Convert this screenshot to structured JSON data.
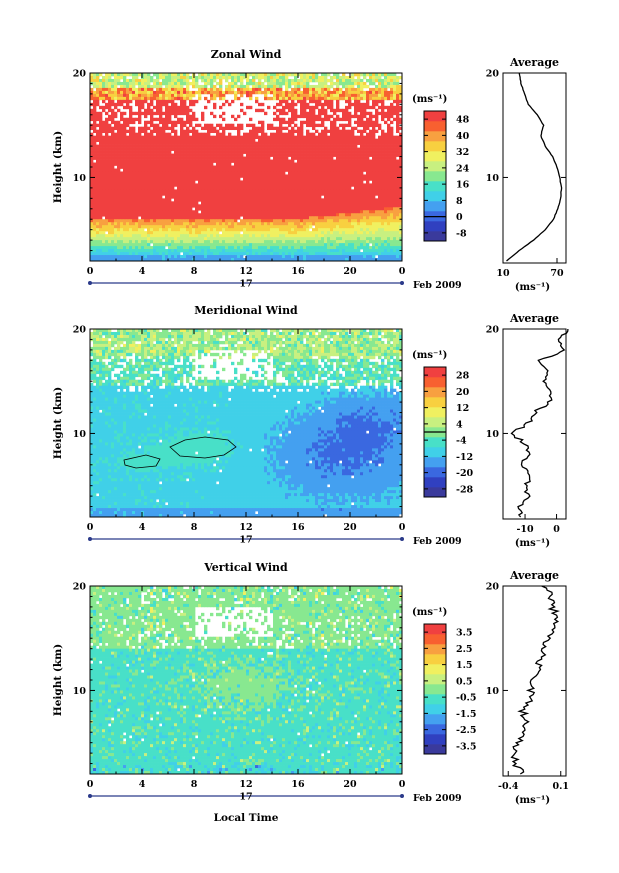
{
  "colors": {
    "scale": [
      "#3a3a9c",
      "#3040c0",
      "#3a68e0",
      "#44a0f0",
      "#40d0e8",
      "#48e0c8",
      "#88e890",
      "#c8f080",
      "#f0f060",
      "#f8d040",
      "#f8a040",
      "#f86030",
      "#f04040"
    ]
  },
  "chart_data": [
    {
      "type": "heatmap",
      "title": "Zonal Wind",
      "ylabel": "Height (km)",
      "y_ticks": [
        "10",
        "20"
      ],
      "ylim": [
        2,
        20
      ],
      "x_ticks": [
        "0",
        "4",
        "8",
        "12",
        "16",
        "20",
        "0"
      ],
      "xlim": [
        0,
        24
      ],
      "day_label": "17",
      "month_label": "Feb 2009",
      "colorbar_unit": "(ms⁻¹)",
      "colorbar_ticks": [
        "48",
        "40",
        "32",
        "24",
        "16",
        "8",
        "0",
        "-8"
      ],
      "colorbar_range": [
        -12,
        52
      ],
      "field": "zonal",
      "avg": {
        "title": "Average",
        "xlabel": "(ms⁻¹)",
        "x_ticks": [
          "10",
          "70"
        ],
        "xlim": [
          10,
          80
        ],
        "y_ticks": [
          "10",
          "20"
        ],
        "height": [
          2,
          3,
          4,
          5,
          6,
          7,
          8,
          9,
          10,
          11,
          12,
          13,
          14,
          15,
          16,
          17,
          18,
          19,
          20
        ],
        "values": [
          14,
          28,
          44,
          57,
          66,
          71,
          74,
          75,
          73,
          70,
          65,
          57,
          52,
          55,
          48,
          38,
          34,
          30,
          28
        ]
      }
    },
    {
      "type": "heatmap",
      "title": "Meridional Wind",
      "ylabel": "Height (km)",
      "y_ticks": [
        "10",
        "20"
      ],
      "ylim": [
        2,
        20
      ],
      "x_ticks": [
        "0",
        "4",
        "8",
        "12",
        "16",
        "20",
        "0"
      ],
      "xlim": [
        0,
        24
      ],
      "day_label": "17",
      "month_label": "Feb 2009",
      "colorbar_unit": "(ms⁻¹)",
      "colorbar_ticks": [
        "28",
        "20",
        "12",
        "4",
        "-4",
        "-12",
        "-20",
        "-28"
      ],
      "colorbar_range": [
        -32,
        32
      ],
      "field": "meridional",
      "avg": {
        "title": "Average",
        "xlabel": "(ms⁻¹)",
        "x_ticks": [
          "-10",
          "0"
        ],
        "xlim": [
          -17,
          3
        ],
        "y_ticks": [
          "10",
          "20"
        ],
        "height": [
          2,
          3,
          4,
          5,
          6,
          7,
          8,
          9,
          10,
          11,
          12,
          13,
          14,
          15,
          16,
          17,
          18,
          19,
          20
        ],
        "values": [
          -11,
          -12,
          -9,
          -10,
          -8,
          -12,
          -9,
          -10,
          -14,
          -9,
          -7,
          -2,
          -1,
          -4,
          -3,
          -5,
          3,
          1,
          4
        ]
      }
    },
    {
      "type": "heatmap",
      "title": "Vertical Wind",
      "ylabel": "Height (km)",
      "y_ticks": [
        "10",
        "20"
      ],
      "ylim": [
        2,
        20
      ],
      "x_ticks": [
        "0",
        "4",
        "8",
        "12",
        "16",
        "20",
        "0"
      ],
      "xlim": [
        0,
        24
      ],
      "day_label": "17",
      "month_label": "Feb 2009",
      "xlabel": "Local Time",
      "colorbar_unit": "(ms⁻¹)",
      "colorbar_ticks": [
        "3.5",
        "2.5",
        "1.5",
        "0.5",
        "-0.5",
        "-1.5",
        "-2.5",
        "-3.5"
      ],
      "colorbar_range": [
        -4,
        4
      ],
      "field": "vertical",
      "avg": {
        "title": "Average",
        "xlabel": "(ms⁻¹)",
        "x_ticks": [
          "-0.4",
          "0.1"
        ],
        "xlim": [
          -0.45,
          0.15
        ],
        "y_ticks": [
          "10",
          "20"
        ],
        "height": [
          2,
          3,
          4,
          5,
          6,
          7,
          8,
          9,
          10,
          11,
          12,
          13,
          14,
          15,
          16,
          17,
          18,
          19,
          20
        ],
        "values": [
          -0.27,
          -0.33,
          -0.36,
          -0.31,
          -0.27,
          -0.22,
          -0.26,
          -0.2,
          -0.18,
          -0.15,
          -0.12,
          -0.1,
          -0.05,
          -0.02,
          0.04,
          0.06,
          0.02,
          0.0,
          -0.05
        ]
      }
    }
  ]
}
